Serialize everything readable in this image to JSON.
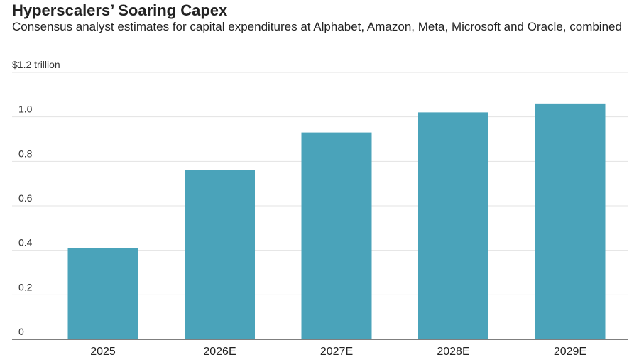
{
  "chart_data": {
    "type": "bar",
    "title": "Hyperscalers’ Soaring Capex",
    "subtitle": "Consensus analyst estimates for capital expenditures at Alphabet, Amazon, Meta, Microsoft and Oracle, combined",
    "unit_label": "$1.2 trillion",
    "categories": [
      "2025",
      "2026E",
      "2027E",
      "2028E",
      "2029E"
    ],
    "values": [
      0.41,
      0.76,
      0.93,
      1.02,
      1.06
    ],
    "y_ticks": [
      "0",
      "0.2",
      "0.4",
      "0.6",
      "0.8",
      "1.0"
    ],
    "ylim": [
      0,
      1.2
    ],
    "grid": true,
    "bar_color": "#4aa3ba"
  }
}
